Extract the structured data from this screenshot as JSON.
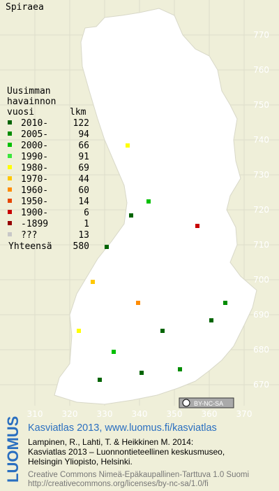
{
  "title": "Spiraea",
  "legend": {
    "header": [
      "Uusimman",
      "havainnon",
      "vuosi"
    ],
    "count_header": "lkm",
    "entries": [
      {
        "label": "2010-",
        "count": 122,
        "color": "#006400"
      },
      {
        "label": "2005-",
        "count": 94,
        "color": "#008c00"
      },
      {
        "label": "2000-",
        "count": 66,
        "color": "#00c000"
      },
      {
        "label": "1990-",
        "count": 91,
        "color": "#3ce63c"
      },
      {
        "label": "1980-",
        "count": 69,
        "color": "#ffff00"
      },
      {
        "label": "1970-",
        "count": 44,
        "color": "#ffc800"
      },
      {
        "label": "1960-",
        "count": 60,
        "color": "#ff8c00"
      },
      {
        "label": "1950-",
        "count": 14,
        "color": "#e64600"
      },
      {
        "label": "1900-",
        "count": 6,
        "color": "#c80000"
      },
      {
        "label": "-1899",
        "count": 1,
        "color": "#960000"
      },
      {
        "label": "???",
        "count": 13,
        "color": "#c8c8c8"
      }
    ],
    "total_label": "Yhteensä",
    "total": 580
  },
  "map": {
    "xlim": [
      300,
      380
    ],
    "ylim": [
      664,
      780
    ],
    "xticks": [
      310,
      320,
      330,
      340,
      350,
      360,
      370
    ],
    "yticks": [
      670,
      680,
      690,
      700,
      710,
      720,
      730,
      740,
      750,
      760,
      770
    ]
  },
  "license_badge": "BY-NC-SA",
  "footer": {
    "logo": "LUOMUS",
    "heading": "Kasviatlas 2013, www.luomus.fi/kasviatlas",
    "citation": [
      "Lampinen, R., Lahti, T. & Heikkinen M. 2014:",
      "Kasviatlas 2013 – Luonnontieteellinen keskusmuseo,",
      "Helsingin Yliopisto, Helsinki."
    ],
    "license": [
      "Creative Commons Nimeä-Epäkaupallinen-Tarttuva 1.0 Suomi",
      "http://creativecommons.org/licenses/by-nc-sa/1.0/fi"
    ]
  }
}
